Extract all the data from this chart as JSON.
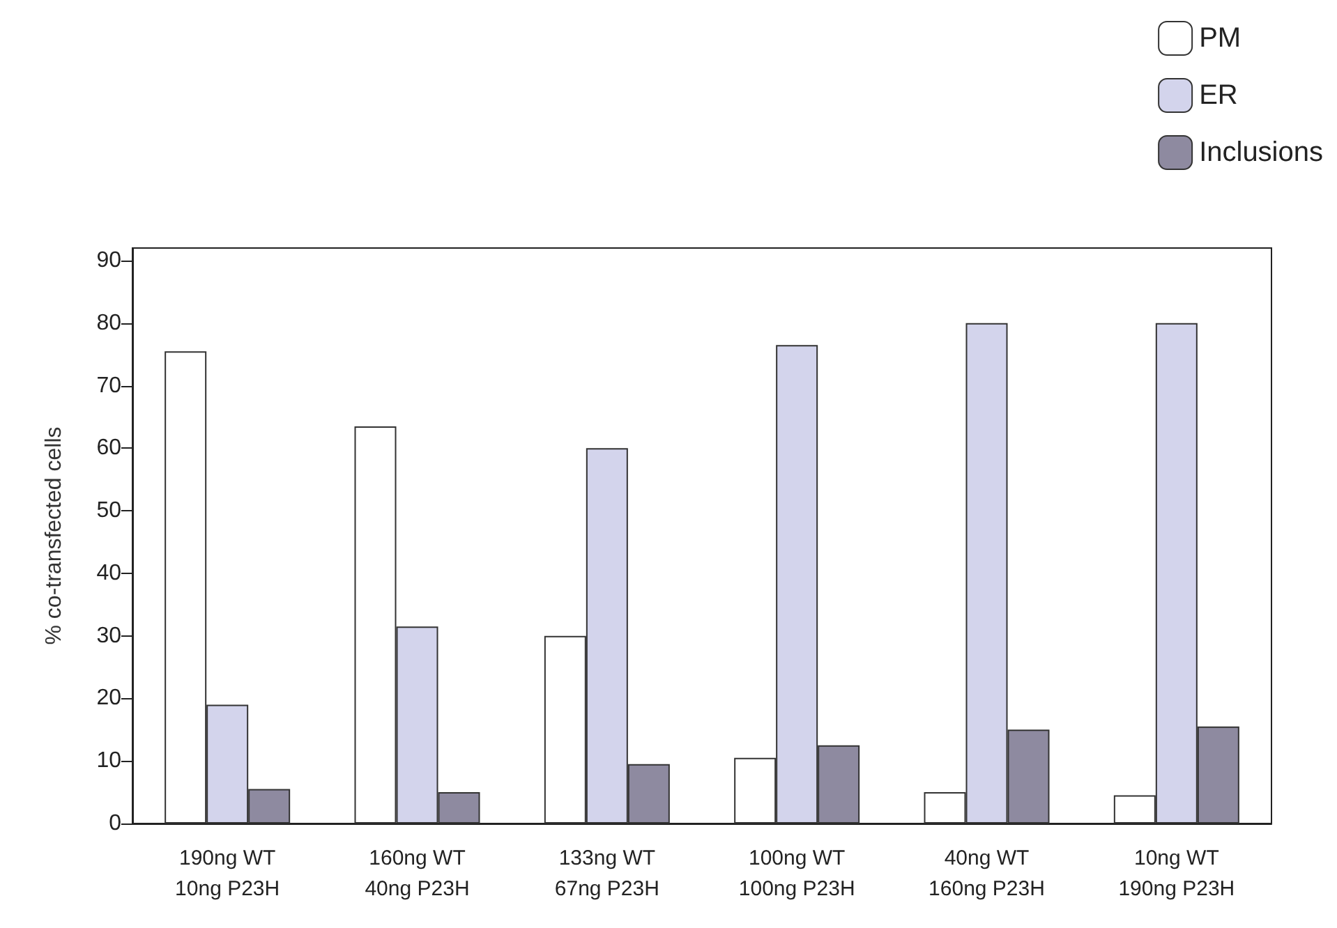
{
  "chart_data": {
    "type": "bar",
    "ylabel": "% co-transfected cells",
    "categories": [
      "190ng WT\n10ng P23H",
      "160ng WT\n40ng P23H",
      "133ng WT\n67ng P23H",
      "100ng WT\n100ng P23H",
      "40ng WT\n160ng P23H",
      "10ng WT\n190ng P23H"
    ],
    "series": [
      {
        "name": "PM",
        "color": "#ffffff",
        "values": [
          75.5,
          63.5,
          30,
          10.5,
          5,
          4.5
        ]
      },
      {
        "name": "ER",
        "color": "#d3d4ec",
        "values": [
          19,
          31.5,
          60,
          76.5,
          80,
          80
        ]
      },
      {
        "name": "Inclusions",
        "color": "#8e8aa0",
        "values": [
          5.5,
          5,
          9.5,
          12.5,
          15,
          15.5
        ]
      }
    ],
    "ylim": [
      0,
      92
    ],
    "yticks": [
      0,
      10,
      20,
      30,
      40,
      50,
      60,
      70,
      80,
      90
    ],
    "grid": false,
    "legend": "top right"
  }
}
